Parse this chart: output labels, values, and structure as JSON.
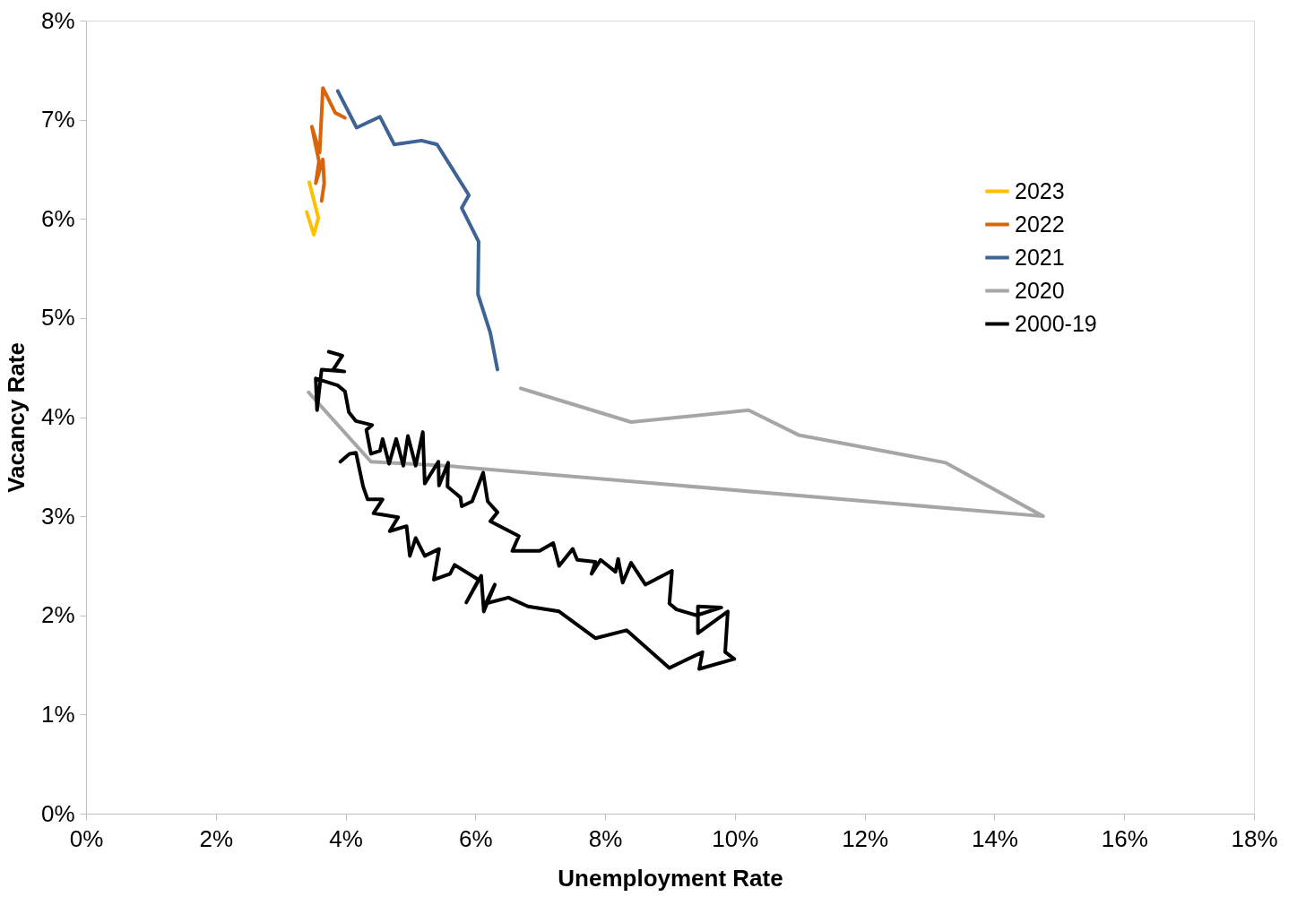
{
  "chart_data": {
    "type": "line",
    "xlabel": "Unemployment Rate",
    "ylabel": "Vacancy Rate",
    "legend": "top right",
    "grid": false,
    "xlim": [
      0,
      18
    ],
    "xticks": [
      {
        "value": 0,
        "label": "0%"
      },
      {
        "value": 2,
        "label": "2%"
      },
      {
        "value": 4,
        "label": "4%"
      },
      {
        "value": 6,
        "label": "6%"
      },
      {
        "value": 8,
        "label": "8%"
      },
      {
        "value": 10,
        "label": "10%"
      },
      {
        "value": 12,
        "label": "12%"
      },
      {
        "value": 14,
        "label": "14%"
      },
      {
        "value": 16,
        "label": "16%"
      },
      {
        "value": 18,
        "label": "18%"
      }
    ],
    "ylim": [
      0,
      8
    ],
    "yticks": [
      {
        "value": 0,
        "label": "0%"
      },
      {
        "value": 1,
        "label": "1%"
      },
      {
        "value": 2,
        "label": "2%"
      },
      {
        "value": 3,
        "label": "3%"
      },
      {
        "value": 4,
        "label": "4%"
      },
      {
        "value": 5,
        "label": "5%"
      },
      {
        "value": 6,
        "label": "6%"
      },
      {
        "value": 7,
        "label": "7%"
      },
      {
        "value": 8,
        "label": "8%"
      }
    ],
    "series": [
      {
        "name": "2023",
        "color": "#ffc000",
        "x": [
          3.44,
          3.58,
          3.51,
          3.4
        ],
        "values": [
          6.37,
          6.01,
          5.84,
          6.07
        ]
      },
      {
        "name": "2022",
        "color": "#d8640c",
        "x": [
          3.99,
          3.84,
          3.65,
          3.6,
          3.48,
          3.59,
          3.54,
          3.65,
          3.67,
          3.63
        ],
        "values": [
          7.02,
          7.07,
          7.32,
          6.67,
          6.93,
          6.58,
          6.36,
          6.6,
          6.36,
          6.18
        ]
      },
      {
        "name": "2021",
        "color": "#3e6496",
        "x": [
          6.34,
          6.23,
          6.04,
          6.05,
          5.79,
          5.9,
          5.41,
          5.17,
          4.75,
          4.53,
          4.17,
          3.88
        ],
        "values": [
          4.48,
          4.85,
          5.24,
          5.77,
          6.11,
          6.24,
          6.75,
          6.79,
          6.75,
          7.03,
          6.92,
          7.29
        ]
      },
      {
        "name": "2020",
        "color": "#a6a6a6",
        "x": [
          3.43,
          4.39,
          5.54,
          14.75,
          13.25,
          10.98,
          10.21,
          8.4,
          6.85,
          6.7
        ],
        "values": [
          4.25,
          3.55,
          3.51,
          3.0,
          3.54,
          3.82,
          4.07,
          3.95,
          4.26,
          4.29
        ]
      },
      {
        "name": "2000-19",
        "color": "#000000",
        "x": [
          3.74,
          3.95,
          3.81,
          3.98,
          3.63,
          3.56,
          3.54,
          3.88,
          3.99,
          4.05,
          4.16,
          4.41,
          4.32,
          4.39,
          4.53,
          4.57,
          4.67,
          4.78,
          4.89,
          4.96,
          5.08,
          5.19,
          5.22,
          5.43,
          5.44,
          5.58,
          5.57,
          5.77,
          5.79,
          5.95,
          6.12,
          6.19,
          6.34,
          6.23,
          6.67,
          6.57,
          6.99,
          7.2,
          7.29,
          7.5,
          7.57,
          7.85,
          7.79,
          7.93,
          8.16,
          8.2,
          8.27,
          8.4,
          8.62,
          9.03,
          8.99,
          9.1,
          9.41,
          9.79,
          9.43,
          9.43,
          9.89,
          9.85,
          9.99,
          9.45,
          9.5,
          8.99,
          8.33,
          7.85,
          7.29,
          6.81,
          6.51,
          6.16,
          6.3,
          6.13,
          6.09,
          5.86,
          6.05,
          5.68,
          5.61,
          5.36,
          5.44,
          5.22,
          5.08,
          4.99,
          4.94,
          4.68,
          4.81,
          4.43,
          4.57,
          4.34,
          4.27,
          4.16,
          4.06,
          3.92
        ],
        "values": [
          4.66,
          4.62,
          4.48,
          4.46,
          4.48,
          4.07,
          4.39,
          4.32,
          4.26,
          4.05,
          3.96,
          3.92,
          3.87,
          3.63,
          3.66,
          3.78,
          3.53,
          3.78,
          3.51,
          3.81,
          3.51,
          3.85,
          3.33,
          3.55,
          3.31,
          3.54,
          3.3,
          3.19,
          3.1,
          3.15,
          3.44,
          3.15,
          3.04,
          2.95,
          2.8,
          2.65,
          2.65,
          2.73,
          2.5,
          2.67,
          2.56,
          2.54,
          2.42,
          2.56,
          2.44,
          2.57,
          2.33,
          2.53,
          2.31,
          2.45,
          2.12,
          2.06,
          2.0,
          2.08,
          2.09,
          1.82,
          2.04,
          1.63,
          1.56,
          1.46,
          1.63,
          1.47,
          1.85,
          1.77,
          2.04,
          2.09,
          2.18,
          2.12,
          2.31,
          2.04,
          2.4,
          2.13,
          2.36,
          2.51,
          2.42,
          2.36,
          2.67,
          2.6,
          2.78,
          2.6,
          2.9,
          2.85,
          2.99,
          3.03,
          3.17,
          3.17,
          3.3,
          3.64,
          3.63,
          3.55
        ]
      }
    ]
  }
}
